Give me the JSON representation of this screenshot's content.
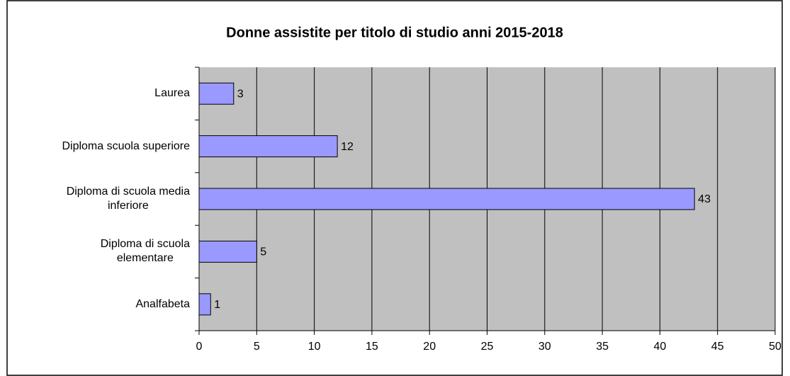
{
  "chart_data": {
    "type": "bar",
    "orientation": "horizontal",
    "title": "Donne assistite per titolo di studio anni 2015-2018",
    "categories": [
      "Laurea",
      "Diploma scuola superiore",
      "Diploma di scuola media\ninferiore",
      "Diploma di scuola\nelementare",
      "Analfabeta"
    ],
    "values": [
      3,
      12,
      43,
      5,
      1
    ],
    "color": "#9999ff",
    "xlim": [
      0,
      50
    ],
    "xticks": [
      0,
      5,
      10,
      15,
      20,
      25,
      30,
      35,
      40,
      45,
      50
    ],
    "grid": true
  }
}
